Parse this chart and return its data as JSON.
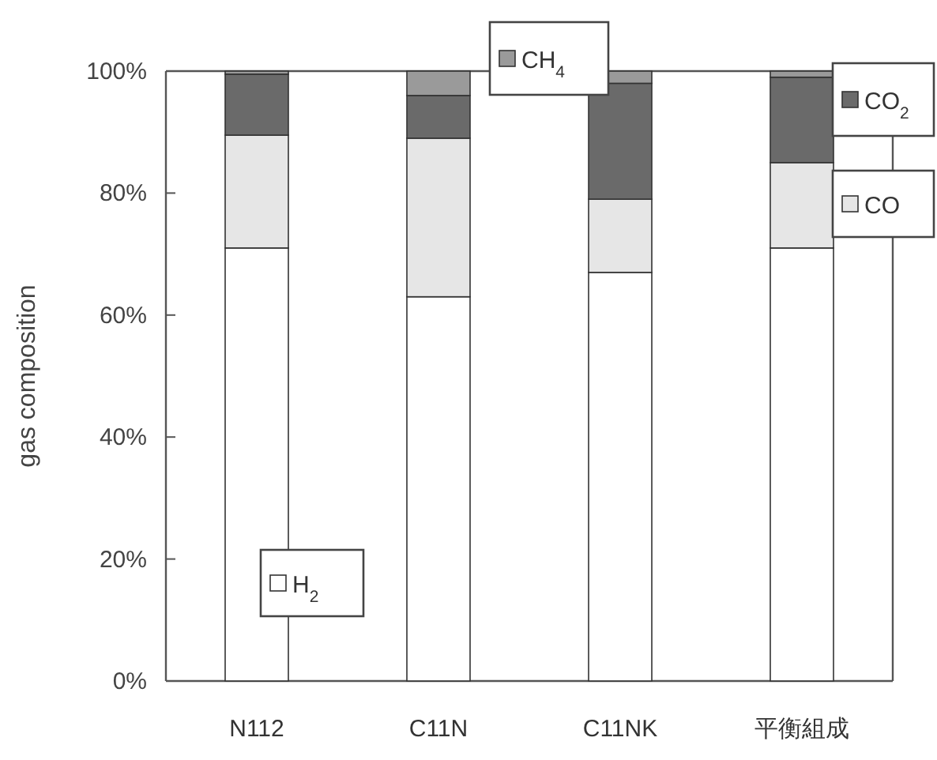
{
  "chart_data": {
    "type": "bar",
    "stacked": true,
    "ylabel": "gas composition",
    "categories": [
      "N112",
      "C11N",
      "C11NK",
      "平衡組成"
    ],
    "series": [
      {
        "name": "H$_{2}$",
        "color": "#ffffff",
        "values": [
          71,
          63,
          67,
          71
        ]
      },
      {
        "name": "CO",
        "color": "#e6e6e6",
        "values": [
          18.5,
          26,
          12,
          14
        ]
      },
      {
        "name": "CO$_{2}$",
        "color": "#6a6a6a",
        "values": [
          10,
          7,
          19,
          14
        ]
      },
      {
        "name": "CH$_{4}$",
        "color": "#9a9a9a",
        "values": [
          0.5,
          4,
          2,
          1
        ]
      }
    ],
    "ylim": [
      0,
      100
    ],
    "yticks": [
      {
        "value": 0,
        "label": "0%"
      },
      {
        "value": 20,
        "label": "20%"
      },
      {
        "value": 40,
        "label": "40%"
      },
      {
        "value": 60,
        "label": "60%"
      },
      {
        "value": 80,
        "label": "80%"
      },
      {
        "value": 100,
        "label": "100%"
      }
    ],
    "legend": "right"
  }
}
